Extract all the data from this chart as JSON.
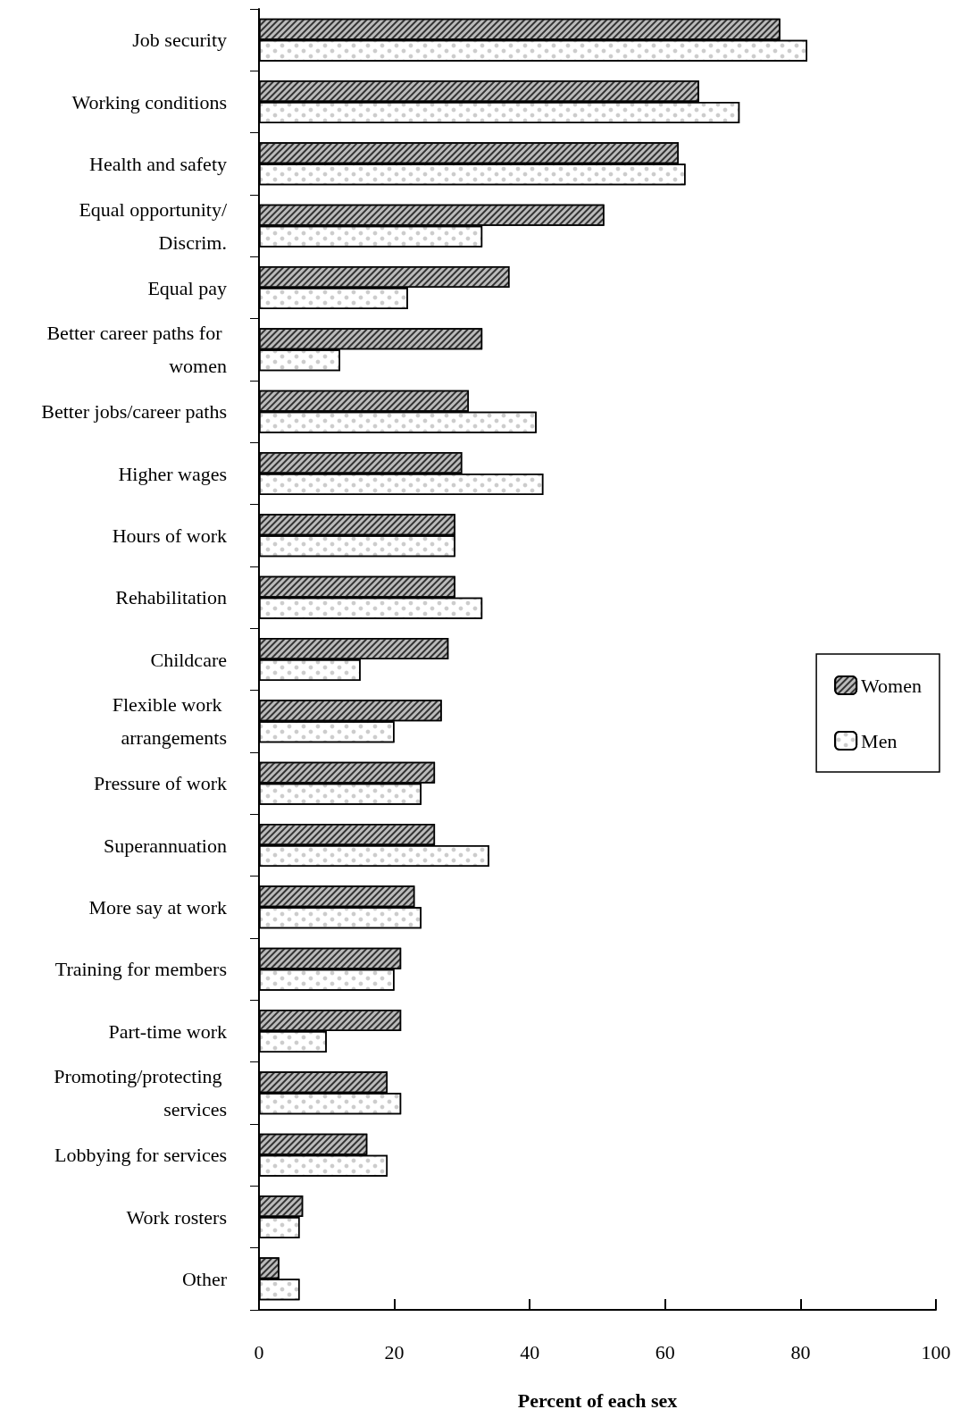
{
  "chart_data": {
    "type": "bar",
    "orientation": "horizontal",
    "xlabel": "Percent of each sex",
    "categories": [
      "Job security",
      "Working conditions",
      "Health and safety",
      "Equal opportunity/Discrim.",
      "Equal pay",
      "Better career paths for women",
      "Better jobs/career paths",
      "Higher wages",
      "Hours of work",
      "Rehabilitation",
      "Childcare",
      "Flexible work arrangements",
      "Pressure of work",
      "Superannuation",
      "More say at work",
      "Training for members",
      "Part-time work",
      "Promoting/protecting services",
      "Lobbying for services",
      "Work rosters",
      "Other"
    ],
    "series": [
      {
        "name": "Women",
        "color": "#bbbbbb",
        "values": [
          77,
          65,
          62,
          51,
          37,
          33,
          31,
          30,
          29,
          29,
          28,
          27,
          26,
          26,
          23,
          21,
          21,
          19,
          16,
          6.5,
          3
        ]
      },
      {
        "name": "Men",
        "color": "#ffffff",
        "values": [
          81,
          71,
          63,
          33,
          22,
          12,
          41,
          42,
          29,
          33,
          15,
          20,
          24,
          34,
          24,
          20,
          10,
          21,
          19,
          6,
          6
        ]
      }
    ],
    "xlim": [
      0,
      100
    ],
    "xticks": [
      0,
      20,
      40,
      60,
      80,
      100
    ],
    "grid": false,
    "legend": "right"
  }
}
